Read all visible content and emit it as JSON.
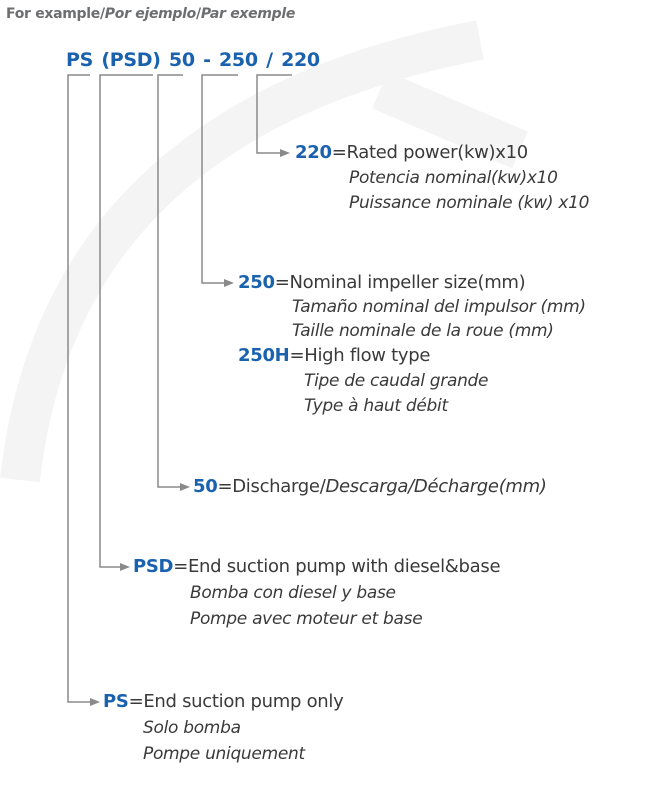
{
  "header": {
    "en": "For example",
    "es": "Por ejemplo",
    "fr": "Par exemple"
  },
  "code": {
    "ps": "PS",
    "psd": "(PSD)",
    "discharge": "50",
    "sep1": "-",
    "impeller": "250",
    "sep2": "/",
    "power": "220"
  },
  "entries": {
    "power": {
      "key": "220",
      "text": "=Rated power(kw)x10",
      "es": "Potencia nominal(kw)x10",
      "fr": "Puissance nominale (kw) x10"
    },
    "impeller": {
      "key": "250",
      "text": "=Nominal impeller size(mm)",
      "es": "Tamaño nominal del impulsor (mm)",
      "fr": "Taille nominale de la roue (mm)"
    },
    "highflow": {
      "key": "250H",
      "text": "=High flow type",
      "es": "Tipe de caudal grande",
      "fr": "Type à haut débit"
    },
    "discharge": {
      "key": "50",
      "text": "=Discharge/",
      "es_fr": "Descarga/Décharge(mm)"
    },
    "psd": {
      "key": "PSD",
      "text": "=End suction pump with diesel&base",
      "es": "Bomba con diesel y base",
      "fr": "Pompe avec moteur et base"
    },
    "ps": {
      "key": "PS",
      "text": "=End suction pump only",
      "es": "Solo bomba",
      "fr": "Pompe uniquement"
    }
  },
  "colors": {
    "accent": "#1a62ae",
    "text": "#3a3a3a",
    "lines": "#8a8a8a",
    "watermark": "#f3f3f3"
  }
}
